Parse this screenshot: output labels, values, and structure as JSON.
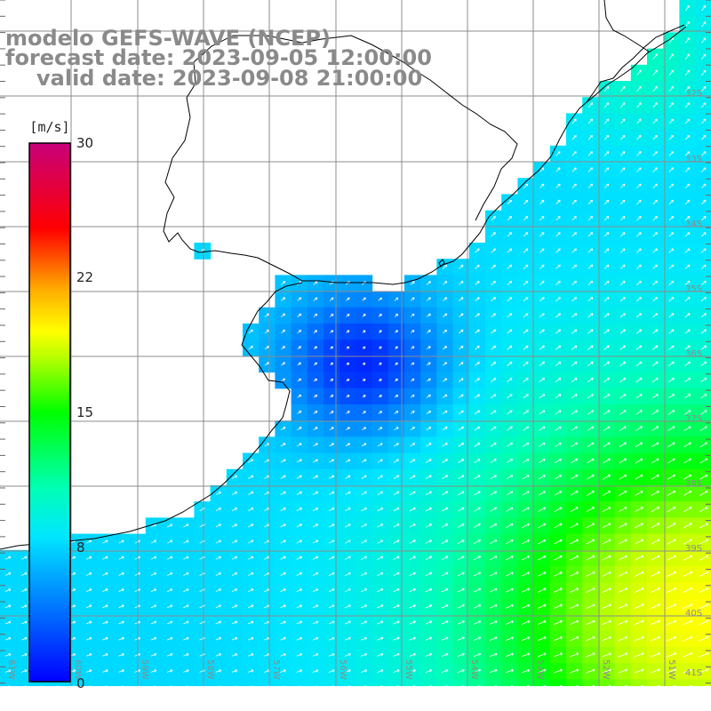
{
  "header": {
    "line1": "modelo GEFS-WAVE (NCEP)",
    "line2": "forecast date: 2023-09-05 12:00:00",
    "line3": "valid date: 2023-09-08 21:00:00"
  },
  "colorbar": {
    "unit": "[m/s]",
    "ticks": [
      "30",
      "22",
      "15",
      "8",
      "0"
    ],
    "min": 0,
    "max": 30
  },
  "grid": {
    "lat_labels": [
      "32S",
      "33S",
      "34S",
      "35S",
      "36S",
      "37S",
      "38S",
      "39S",
      "40S",
      "41S"
    ],
    "lon_labels": [
      "61W",
      "60W",
      "59W",
      "58W",
      "57W",
      "56W",
      "55W",
      "54W",
      "53W",
      "52W",
      "51W"
    ]
  },
  "colors": {
    "land": "#ffffff",
    "coast": "#000000",
    "grid": "#8c8c8c",
    "title": "#8a8a8a",
    "arrows": "#ffffff"
  }
}
